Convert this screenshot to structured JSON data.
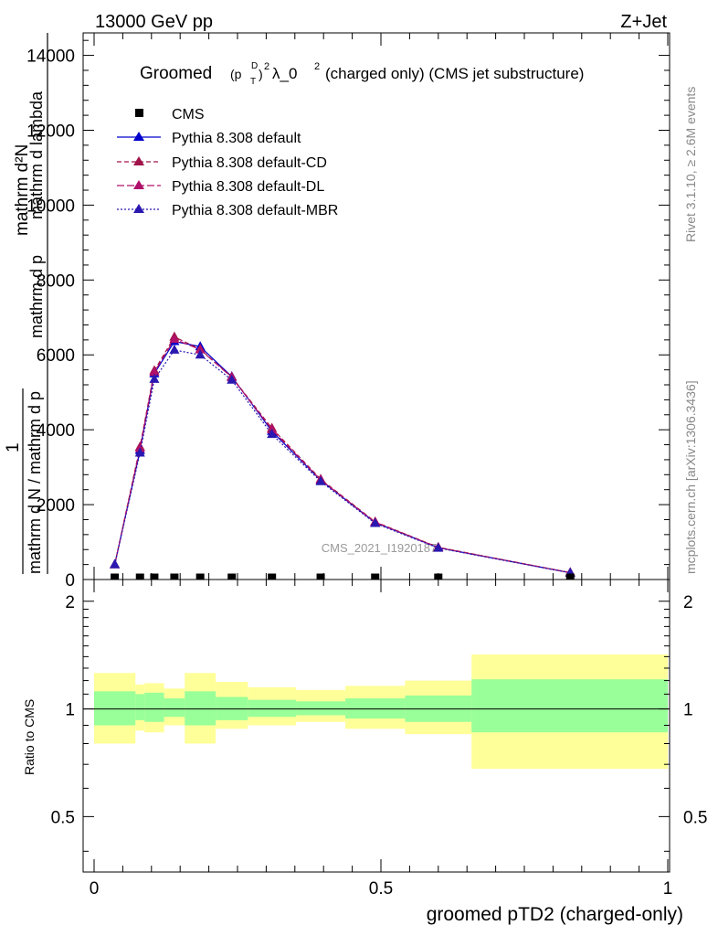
{
  "header": {
    "left": "13000 GeV pp",
    "right": "Z+Jet"
  },
  "side_labels": {
    "rivet": "Rivet 3.1.10, ≥ 2.6M events",
    "mcplots": "mcplots.cern.ch [arXiv:1306.3436]"
  },
  "watermark": "CMS_2021_I1920187",
  "colors": {
    "cms": "#000000",
    "default": "#0000cc",
    "default_cd": "#a0144a",
    "default_dl": "#b0106a",
    "default_mbr": "#2a18b0",
    "band_inner": "#99ff99",
    "band_outer": "#ffff99"
  },
  "chart_data": [
    {
      "type": "line",
      "title_main": "Groomed",
      "title_rest": "λ_0",
      "title_tail": "(charged only) (CMS jet substructure)",
      "title_sup1": "D",
      "title_sub1": "T",
      "title_sup2": "2",
      "title_sup3": "2",
      "title_p": "(p",
      "title_close": ")",
      "ylabel_top": "mathrm d²N",
      "ylabel_mid": "mathrm d p",
      "ylabel_mid2": "mathrm d lambda",
      "ylabel_one": "1",
      "ylabel_bottom": "mathrm d N / mathrm d p",
      "ylabel_bottom_sub": "T",
      "ylabel_bottom_prefix": "mathrm d",
      "xlim": [
        0,
        1
      ],
      "ylim": [
        0,
        14600
      ],
      "yticks": [
        0,
        2000,
        4000,
        6000,
        8000,
        10000,
        12000,
        14000
      ],
      "ytick_labels": [
        "0",
        "2000",
        "4000",
        "6000",
        "8000",
        "10000",
        "12000",
        "14000"
      ],
      "cms_points": {
        "name": "CMS",
        "x": [
          0.036,
          0.08,
          0.105,
          0.14,
          0.185,
          0.24,
          0.31,
          0.395,
          0.49,
          0.6,
          0.83
        ],
        "y": [
          0,
          0,
          0,
          0,
          0,
          0,
          0,
          0,
          0,
          0,
          0
        ]
      },
      "series": [
        {
          "name": "Pythia 8.308 default",
          "x": [
            0.036,
            0.08,
            0.105,
            0.14,
            0.185,
            0.24,
            0.31,
            0.395,
            0.49,
            0.6,
            0.83
          ],
          "y": [
            400,
            3450,
            5500,
            6360,
            6220,
            5420,
            3960,
            2650,
            1520,
            850,
            180
          ]
        },
        {
          "name": "Pythia 8.308 default-CD",
          "x": [
            0.036,
            0.08,
            0.105,
            0.14,
            0.185,
            0.24,
            0.31,
            0.395,
            0.49,
            0.6,
            0.83
          ],
          "y": [
            400,
            3540,
            5580,
            6480,
            6150,
            5410,
            4040,
            2680,
            1540,
            860,
            185
          ]
        },
        {
          "name": "Pythia 8.308 default-DL",
          "x": [
            0.036,
            0.08,
            0.105,
            0.14,
            0.185,
            0.24,
            0.31,
            0.395,
            0.49,
            0.6,
            0.83
          ],
          "y": [
            400,
            3500,
            5540,
            6420,
            6140,
            5400,
            4000,
            2660,
            1530,
            855,
            182
          ]
        },
        {
          "name": "Pythia 8.308 default-MBR",
          "x": [
            0.036,
            0.08,
            0.105,
            0.14,
            0.185,
            0.24,
            0.31,
            0.395,
            0.49,
            0.6,
            0.83
          ],
          "y": [
            400,
            3380,
            5350,
            6130,
            6000,
            5330,
            3880,
            2620,
            1500,
            840,
            178
          ]
        }
      ],
      "legend": "top-left"
    },
    {
      "type": "area",
      "ylabel": "Ratio to CMS",
      "xlabel": "groomed pTD2 (charged-only)",
      "xlim": [
        0,
        1
      ],
      "ylim": [
        0.35,
        2.3
      ],
      "yticks": [
        0.5,
        1,
        2
      ],
      "ytick_labels": [
        "0.5",
        "1",
        "2"
      ],
      "xticks": [
        0,
        0.5,
        1
      ],
      "xtick_labels": [
        "0",
        "0.5",
        "1"
      ],
      "bins": [
        {
          "lo": 0.0,
          "hi": 0.072,
          "inner": [
            0.9,
            1.12
          ],
          "outer": [
            0.8,
            1.26
          ]
        },
        {
          "lo": 0.072,
          "hi": 0.088,
          "inner": [
            0.93,
            1.1
          ],
          "outer": [
            0.87,
            1.17
          ]
        },
        {
          "lo": 0.088,
          "hi": 0.122,
          "inner": [
            0.92,
            1.11
          ],
          "outer": [
            0.86,
            1.18
          ]
        },
        {
          "lo": 0.122,
          "hi": 0.158,
          "inner": [
            0.95,
            1.07
          ],
          "outer": [
            0.9,
            1.14
          ]
        },
        {
          "lo": 0.158,
          "hi": 0.212,
          "inner": [
            0.9,
            1.12
          ],
          "outer": [
            0.8,
            1.26
          ]
        },
        {
          "lo": 0.212,
          "hi": 0.268,
          "inner": [
            0.93,
            1.08
          ],
          "outer": [
            0.88,
            1.19
          ]
        },
        {
          "lo": 0.268,
          "hi": 0.352,
          "inner": [
            0.95,
            1.06
          ],
          "outer": [
            0.9,
            1.15
          ]
        },
        {
          "lo": 0.352,
          "hi": 0.438,
          "inner": [
            0.96,
            1.05
          ],
          "outer": [
            0.92,
            1.13
          ]
        },
        {
          "lo": 0.438,
          "hi": 0.542,
          "inner": [
            0.94,
            1.07
          ],
          "outer": [
            0.88,
            1.16
          ]
        },
        {
          "lo": 0.542,
          "hi": 0.658,
          "inner": [
            0.92,
            1.09
          ],
          "outer": [
            0.85,
            1.2
          ]
        },
        {
          "lo": 0.658,
          "hi": 1.0,
          "inner": [
            0.86,
            1.21
          ],
          "outer": [
            0.68,
            1.42
          ]
        }
      ],
      "reference": 1
    }
  ]
}
